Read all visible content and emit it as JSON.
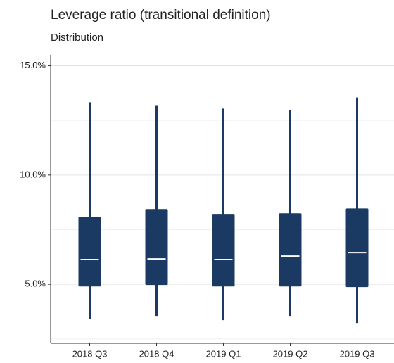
{
  "chart_data": {
    "type": "box",
    "title": "Leverage ratio (transitional definition)",
    "subtitle": "Distribution",
    "categories": [
      "2018 Q3",
      "2018 Q4",
      "2019 Q1",
      "2019 Q2",
      "2019 Q3"
    ],
    "series": [
      {
        "color": "#1a3a63",
        "whisker_high": [
          13.33,
          13.2,
          13.04,
          12.97,
          13.55
        ],
        "q3": [
          8.09,
          8.44,
          8.22,
          8.25,
          8.47
        ],
        "median": [
          6.13,
          6.16,
          6.13,
          6.29,
          6.45
        ],
        "q1": [
          4.9,
          4.97,
          4.9,
          4.9,
          4.87
        ],
        "whisker_low": [
          3.42,
          3.55,
          3.36,
          3.55,
          3.23
        ]
      }
    ],
    "ylim": [
      2.3,
      15.5
    ],
    "yticks": [
      {
        "value": 5,
        "label": "5.0%"
      },
      {
        "value": 10,
        "label": "10.0%"
      },
      {
        "value": 15,
        "label": "15.0%"
      }
    ],
    "minor_yticks": [
      2.5,
      7.5,
      12.5
    ],
    "grid": true
  }
}
